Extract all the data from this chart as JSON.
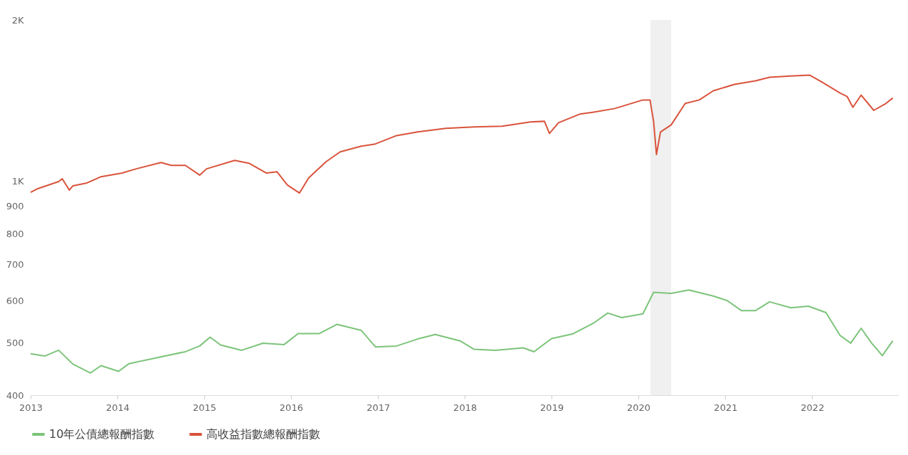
{
  "chart_data": {
    "type": "line",
    "log": true,
    "legend": "bottom",
    "grid": false,
    "xlim": [
      "2013-01-01",
      "2022-12-31"
    ],
    "xticks": [
      {
        "value": "2013-01-01",
        "label": "2013"
      },
      {
        "value": "2014-01-01",
        "label": "2014"
      },
      {
        "value": "2015-01-01",
        "label": "2015"
      },
      {
        "value": "2016-01-01",
        "label": "2016"
      },
      {
        "value": "2017-01-01",
        "label": "2017"
      },
      {
        "value": "2018-01-01",
        "label": "2018"
      },
      {
        "value": "2019-01-01",
        "label": "2019"
      },
      {
        "value": "2020-01-01",
        "label": "2020"
      },
      {
        "value": "2021-01-01",
        "label": "2021"
      },
      {
        "value": "2022-01-01",
        "label": "2022"
      }
    ],
    "ylim": [
      400,
      2000
    ],
    "yticks": [
      400,
      500,
      600,
      700,
      800,
      900,
      {
        "value": 1000,
        "label": "1K"
      },
      {
        "value": 2000,
        "label": "2K"
      }
    ],
    "bands": [
      {
        "axis": "x",
        "from": "2020-02-21",
        "to": "2020-05-18",
        "color": "#f0f0f0"
      }
    ],
    "series": [
      {
        "name": "10年公債總報酬指數",
        "color": "#7cc47a",
        "x": [
          "2013-01-01",
          "2013-03-01",
          "2013-04-29",
          "2013-06-28",
          "2013-09-10",
          "2013-10-24",
          "2014-01-06",
          "2014-02-19",
          "2014-06-18",
          "2014-10-14",
          "2014-12-13",
          "2015-01-26",
          "2015-03-11",
          "2015-06-08",
          "2015-09-05",
          "2015-12-03",
          "2016-01-31",
          "2016-04-29",
          "2016-07-12",
          "2016-10-23",
          "2016-12-21",
          "2017-03-20",
          "2017-06-17",
          "2017-08-30",
          "2017-12-12",
          "2018-02-09",
          "2018-05-09",
          "2018-09-04",
          "2018-10-19",
          "2019-01-01",
          "2019-03-30",
          "2019-06-27",
          "2019-08-25",
          "2019-10-23",
          "2020-01-20",
          "2020-03-05",
          "2020-05-18",
          "2020-07-31",
          "2020-11-11",
          "2021-01-09",
          "2021-03-09",
          "2021-05-08",
          "2021-07-06",
          "2021-10-03",
          "2021-12-16",
          "2022-02-28",
          "2022-04-28",
          "2022-06-12",
          "2022-07-26",
          "2022-09-08",
          "2022-10-23",
          "2022-12-06"
        ],
        "values": [
          478,
          473,
          485,
          457,
          440,
          454,
          443,
          458,
          470,
          482,
          494,
          513,
          496,
          485,
          500,
          497,
          521,
          521,
          542,
          528,
          492,
          494,
          509,
          519,
          505,
          487,
          485,
          490,
          482,
          510,
          520,
          545,
          569,
          558,
          567,
          622,
          619,
          628,
          612,
          600,
          575,
          575,
          597,
          582,
          586,
          570,
          517,
          500,
          533,
          500,
          474,
          505
        ]
      },
      {
        "name": "高收益指數總報酬指數",
        "color": "#d9533c",
        "x": [
          "2013-01-01",
          "2013-01-31",
          "2013-04-29",
          "2013-05-14",
          "2013-06-13",
          "2013-06-28",
          "2013-08-26",
          "2013-10-24",
          "2014-01-21",
          "2014-03-21",
          "2014-07-03",
          "2014-08-16",
          "2014-10-14",
          "2014-12-13",
          "2015-01-11",
          "2015-05-09",
          "2015-07-08",
          "2015-09-20",
          "2015-11-03",
          "2015-12-17",
          "2016-02-06",
          "2016-03-15",
          "2016-05-28",
          "2016-07-26",
          "2016-10-23",
          "2016-12-21",
          "2017-03-20",
          "2017-06-17",
          "2017-10-13",
          "2018-02-09",
          "2018-06-07",
          "2018-10-04",
          "2018-12-02",
          "2018-12-23",
          "2019-01-30",
          "2019-04-29",
          "2019-06-27",
          "2019-09-24",
          "2020-01-20",
          "2020-02-19",
          "2020-03-05",
          "2020-03-17",
          "2020-04-03",
          "2020-05-18",
          "2020-07-16",
          "2020-09-13",
          "2020-11-11",
          "2021-02-08",
          "2021-05-08",
          "2021-07-06",
          "2021-10-03",
          "2021-12-22",
          "2022-02-13",
          "2022-04-28",
          "2022-05-28",
          "2022-06-21",
          "2022-07-26",
          "2022-09-17",
          "2022-11-07",
          "2022-12-06"
        ],
        "values": [
          955,
          970,
          1000,
          1012,
          964,
          982,
          994,
          1021,
          1037,
          1056,
          1085,
          1072,
          1072,
          1028,
          1056,
          1095,
          1082,
          1037,
          1043,
          985,
          952,
          1015,
          1089,
          1136,
          1164,
          1175,
          1218,
          1237,
          1256,
          1264,
          1268,
          1291,
          1295,
          1229,
          1287,
          1335,
          1347,
          1368,
          1419,
          1419,
          1295,
          1123,
          1237,
          1275,
          1398,
          1419,
          1476,
          1517,
          1540,
          1564,
          1573,
          1578,
          1530,
          1462,
          1440,
          1375,
          1449,
          1357,
          1398,
          1431
        ]
      }
    ]
  }
}
